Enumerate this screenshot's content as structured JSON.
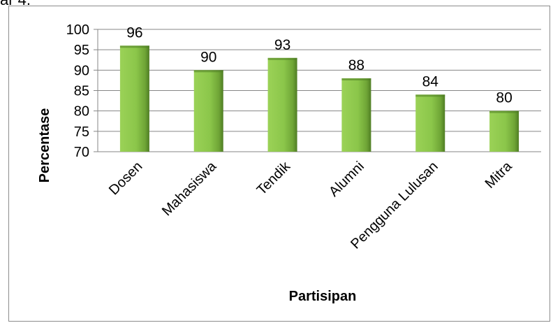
{
  "page_fragment": "ar 4.",
  "colors": {
    "bar_fill": "#8bc64a",
    "bar_edge": "#4f7d24",
    "grid": "#868686"
  },
  "chart_data": {
    "type": "bar",
    "categories": [
      "Dosen",
      "Mahasiswa",
      "Tendik",
      "Alumni",
      "Pengguna Lulusan",
      "Mitra"
    ],
    "values": [
      96,
      90,
      93,
      88,
      84,
      80
    ],
    "title": "",
    "xlabel": "Partisipan",
    "ylabel": "Percentase",
    "ylim": [
      70,
      100
    ],
    "yticks": [
      70,
      75,
      80,
      85,
      90,
      95,
      100
    ],
    "data_labels": true,
    "grid": true,
    "legend": "none"
  }
}
